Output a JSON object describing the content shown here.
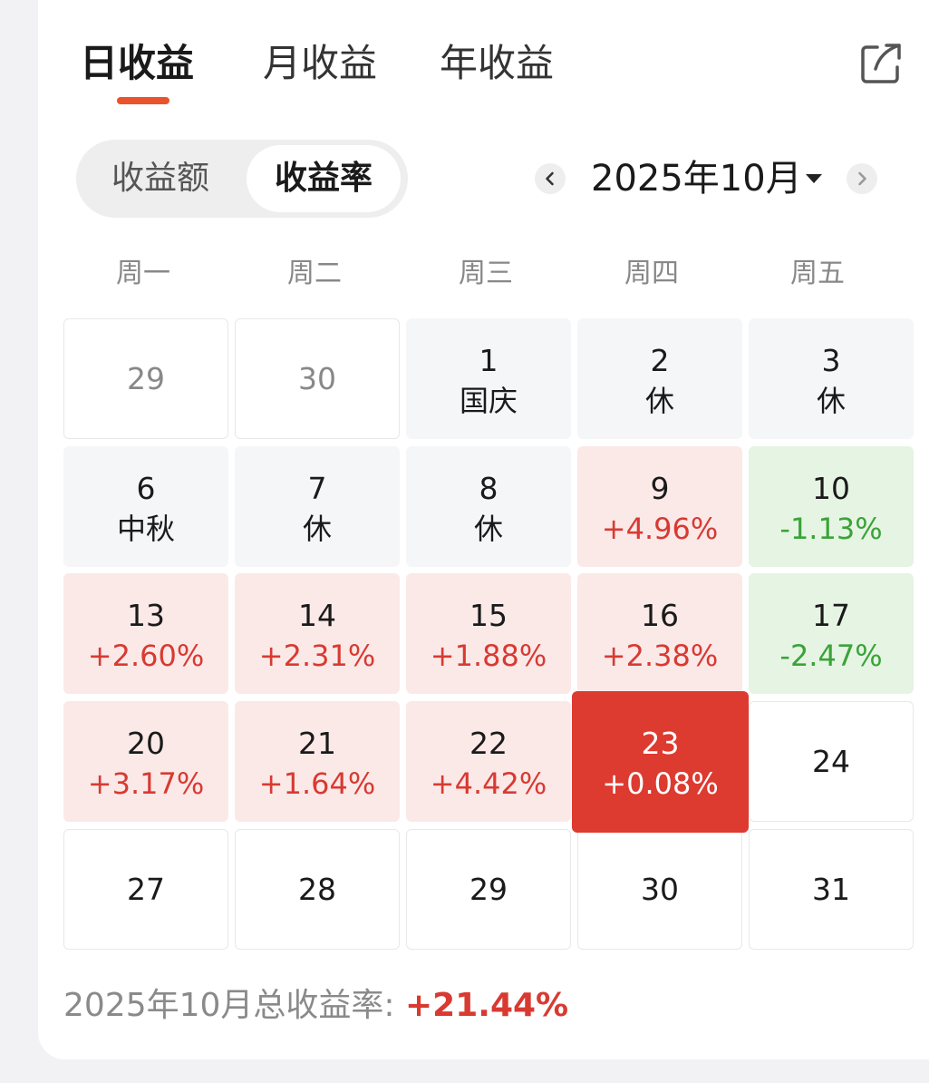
{
  "tabs": [
    {
      "label": "日收益",
      "active": true
    },
    {
      "label": "月收益",
      "active": false
    },
    {
      "label": "年收益",
      "active": false
    }
  ],
  "toggle": {
    "amount_label": "收益额",
    "rate_label": "收益率",
    "selected": "收益率"
  },
  "month_selector": {
    "label": "2025年10月"
  },
  "weekdays": [
    "周一",
    "周二",
    "周三",
    "周四",
    "周五"
  ],
  "calendar": {
    "weeks": [
      [
        {
          "day": "29",
          "sub": "",
          "state": "prevmonth"
        },
        {
          "day": "30",
          "sub": "",
          "state": "prevmonth"
        },
        {
          "day": "1",
          "sub": "国庆",
          "state": "holiday"
        },
        {
          "day": "2",
          "sub": "休",
          "state": "holiday"
        },
        {
          "day": "3",
          "sub": "休",
          "state": "holiday"
        }
      ],
      [
        {
          "day": "6",
          "sub": "中秋",
          "state": "holiday"
        },
        {
          "day": "7",
          "sub": "休",
          "state": "holiday"
        },
        {
          "day": "8",
          "sub": "休",
          "state": "holiday"
        },
        {
          "day": "9",
          "sub": "+4.96%",
          "state": "up"
        },
        {
          "day": "10",
          "sub": "-1.13%",
          "state": "down"
        }
      ],
      [
        {
          "day": "13",
          "sub": "+2.60%",
          "state": "up"
        },
        {
          "day": "14",
          "sub": "+2.31%",
          "state": "up"
        },
        {
          "day": "15",
          "sub": "+1.88%",
          "state": "up"
        },
        {
          "day": "16",
          "sub": "+2.38%",
          "state": "up"
        },
        {
          "day": "17",
          "sub": "-2.47%",
          "state": "down"
        }
      ],
      [
        {
          "day": "20",
          "sub": "+3.17%",
          "state": "up"
        },
        {
          "day": "21",
          "sub": "+1.64%",
          "state": "up"
        },
        {
          "day": "22",
          "sub": "+4.42%",
          "state": "up"
        },
        {
          "day": "23",
          "sub": "+0.08%",
          "state": "today"
        },
        {
          "day": "24",
          "sub": "",
          "state": "future"
        }
      ],
      [
        {
          "day": "27",
          "sub": "",
          "state": "future"
        },
        {
          "day": "28",
          "sub": "",
          "state": "future"
        },
        {
          "day": "29",
          "sub": "",
          "state": "future"
        },
        {
          "day": "30",
          "sub": "",
          "state": "future"
        },
        {
          "day": "31",
          "sub": "",
          "state": "future"
        }
      ]
    ]
  },
  "summary": {
    "label": "2025年10月总收益率: ",
    "value": "+21.44%"
  },
  "colors": {
    "accent": "#e8532b",
    "up_text": "#d83a32",
    "up_bg": "#fbe9e8",
    "down_text": "#3aa338",
    "down_bg": "#e6f4e3",
    "today_bg": "#dd3a30",
    "holiday_bg": "#f5f6f8"
  },
  "icons": {
    "share": "share-icon",
    "prev": "chevron-left-icon",
    "next": "chevron-right-icon",
    "dropdown": "caret-down-icon"
  }
}
